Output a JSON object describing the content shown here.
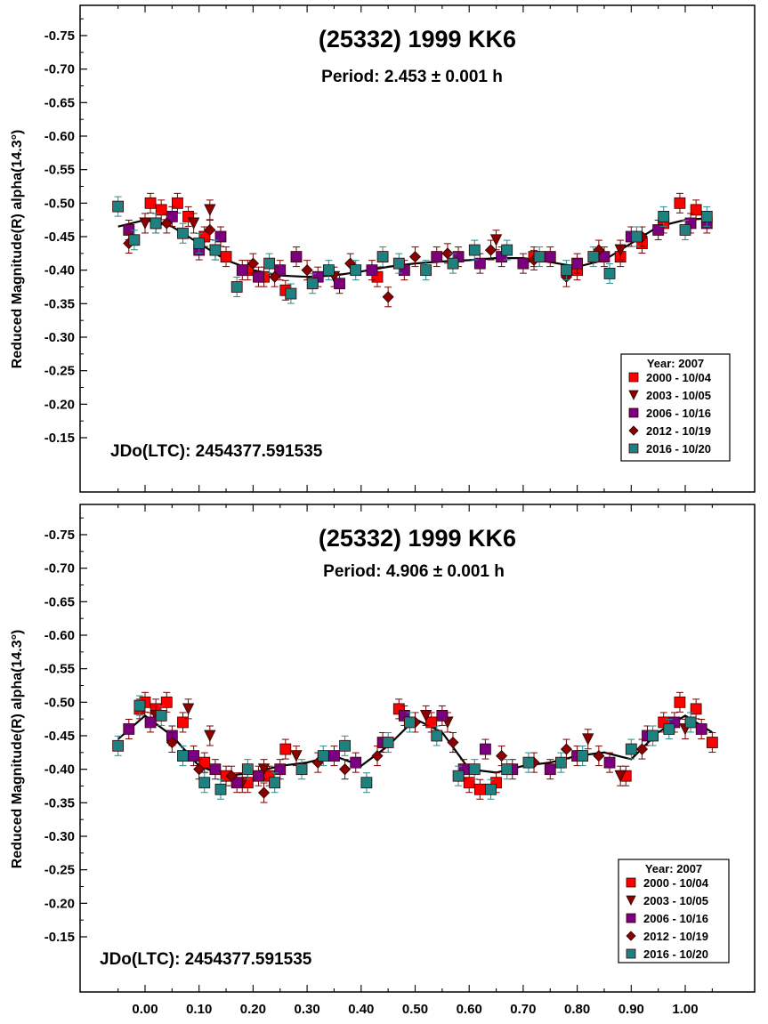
{
  "chart_data": [
    {
      "type": "scatter",
      "title": "(25332) 1999 KK6",
      "subtitle": "Period: 2.453 ± 0.001 h",
      "annotation": "JDo(LTC): 2454377.591535",
      "ylabel": "Reduced Magnitude(R) alpha(14.3°)",
      "xlabel": "",
      "y_inverted": true,
      "ylim": [
        -0.1,
        -0.8
      ],
      "xlim": [
        -0.1,
        1.1
      ],
      "y_ticks": [
        "-0.75",
        "-0.70",
        "-0.65",
        "-0.60",
        "-0.55",
        "-0.50",
        "-0.45",
        "-0.40",
        "-0.35",
        "-0.30",
        "-0.25",
        "-0.20",
        "-0.15"
      ],
      "x_ticks": [],
      "legend": {
        "title": "Year: 2007",
        "position": "bottom-right",
        "entries": [
          {
            "label": "2000 - 10/04",
            "marker": "square",
            "color": "#ff0000"
          },
          {
            "label": "2003 - 10/05",
            "marker": "triangle-down",
            "color": "#8b0000"
          },
          {
            "label": "2006 - 10/16",
            "marker": "square",
            "color": "#7a0080"
          },
          {
            "label": "2012 - 10/19",
            "marker": "diamond",
            "color": "#8b0000"
          },
          {
            "label": "2016 - 10/20",
            "marker": "square",
            "color": "#1f8080"
          }
        ]
      },
      "fit_curve": {
        "x": [
          -0.05,
          0.0,
          0.05,
          0.1,
          0.15,
          0.2,
          0.25,
          0.3,
          0.35,
          0.4,
          0.45,
          0.5,
          0.55,
          0.6,
          0.65,
          0.7,
          0.75,
          0.8,
          0.85,
          0.9,
          0.95,
          1.0,
          1.05
        ],
        "y": [
          -0.465,
          -0.475,
          -0.465,
          -0.44,
          -0.415,
          -0.4,
          -0.392,
          -0.39,
          -0.392,
          -0.398,
          -0.405,
          -0.41,
          -0.413,
          -0.415,
          -0.418,
          -0.418,
          -0.412,
          -0.405,
          -0.415,
          -0.44,
          -0.465,
          -0.475,
          -0.478
        ]
      },
      "series": [
        {
          "name": "2000 - 10/04",
          "x": [
            0.01,
            0.03,
            0.06,
            0.08,
            0.11,
            0.15,
            0.19,
            0.22,
            0.26,
            0.43,
            0.72,
            0.8,
            0.88,
            0.92,
            0.96,
            0.99,
            1.02
          ],
          "y": [
            -0.5,
            -0.49,
            -0.5,
            -0.48,
            -0.45,
            -0.42,
            -0.4,
            -0.39,
            -0.37,
            -0.39,
            -0.42,
            -0.4,
            -0.42,
            -0.44,
            -0.47,
            -0.5,
            -0.49
          ]
        },
        {
          "name": "2003 - 10/05",
          "x": [
            0.0,
            0.09,
            0.12,
            0.13,
            0.35,
            0.65,
            0.88
          ],
          "y": [
            -0.47,
            -0.47,
            -0.49,
            -0.43,
            -0.39,
            -0.445,
            -0.43
          ]
        },
        {
          "name": "2006 - 10/16",
          "x": [
            -0.03,
            0.02,
            0.05,
            0.1,
            0.14,
            0.18,
            0.21,
            0.25,
            0.28,
            0.32,
            0.36,
            0.42,
            0.48,
            0.54,
            0.58,
            0.62,
            0.66,
            0.7,
            0.75,
            0.8,
            0.85,
            0.9,
            0.95,
            1.01,
            1.04
          ],
          "y": [
            -0.46,
            -0.47,
            -0.48,
            -0.43,
            -0.45,
            -0.4,
            -0.39,
            -0.4,
            -0.42,
            -0.39,
            -0.38,
            -0.4,
            -0.4,
            -0.42,
            -0.42,
            -0.41,
            -0.42,
            -0.41,
            -0.42,
            -0.41,
            -0.42,
            -0.45,
            -0.46,
            -0.47,
            -0.47
          ]
        },
        {
          "name": "2012 - 10/19",
          "x": [
            -0.03,
            0.04,
            0.12,
            0.2,
            0.24,
            0.3,
            0.38,
            0.45,
            0.5,
            0.56,
            0.64,
            0.72,
            0.78,
            0.84,
            0.92
          ],
          "y": [
            -0.44,
            -0.47,
            -0.46,
            -0.41,
            -0.39,
            -0.4,
            -0.41,
            -0.36,
            -0.42,
            -0.425,
            -0.43,
            -0.415,
            -0.39,
            -0.43,
            -0.45
          ]
        },
        {
          "name": "2016 - 10/20",
          "x": [
            -0.05,
            -0.02,
            0.02,
            0.07,
            0.1,
            0.13,
            0.17,
            0.23,
            0.27,
            0.31,
            0.34,
            0.39,
            0.44,
            0.47,
            0.52,
            0.57,
            0.61,
            0.67,
            0.73,
            0.78,
            0.83,
            0.86,
            0.91,
            0.96,
            1.0,
            1.04
          ],
          "y": [
            -0.495,
            -0.445,
            -0.47,
            -0.455,
            -0.44,
            -0.43,
            -0.375,
            -0.41,
            -0.365,
            -0.38,
            -0.4,
            -0.4,
            -0.42,
            -0.41,
            -0.4,
            -0.41,
            -0.43,
            -0.43,
            -0.42,
            -0.4,
            -0.42,
            -0.395,
            -0.45,
            -0.48,
            -0.46,
            -0.48
          ]
        }
      ]
    },
    {
      "type": "scatter",
      "title": "(25332) 1999 KK6",
      "subtitle": "Period: 4.906 ± 0.001 h",
      "annotation": "JDo(LTC): 2454377.591535",
      "ylabel": "Reduced Magnitude(R) alpha(14.3°)",
      "xlabel": "",
      "y_inverted": true,
      "ylim": [
        -0.1,
        -0.8
      ],
      "xlim": [
        -0.1,
        1.1
      ],
      "y_ticks": [
        "-0.75",
        "-0.70",
        "-0.65",
        "-0.60",
        "-0.55",
        "-0.50",
        "-0.45",
        "-0.40",
        "-0.35",
        "-0.30",
        "-0.25",
        "-0.20",
        "-0.15"
      ],
      "x_ticks": [
        "0.00",
        "0.10",
        "0.20",
        "0.30",
        "0.40",
        "0.50",
        "0.60",
        "0.70",
        "0.80",
        "0.90",
        "1.00"
      ],
      "legend": {
        "title": "Year: 2007",
        "position": "bottom-right",
        "entries": [
          {
            "label": "2000 - 10/04",
            "marker": "square",
            "color": "#ff0000"
          },
          {
            "label": "2003 - 10/05",
            "marker": "triangle-down",
            "color": "#8b0000"
          },
          {
            "label": "2006 - 10/16",
            "marker": "square",
            "color": "#7a0080"
          },
          {
            "label": "2012 - 10/19",
            "marker": "diamond",
            "color": "#8b0000"
          },
          {
            "label": "2016 - 10/20",
            "marker": "square",
            "color": "#1f8080"
          }
        ]
      },
      "fit_curve": {
        "x": [
          -0.05,
          0.0,
          0.05,
          0.1,
          0.15,
          0.2,
          0.25,
          0.3,
          0.35,
          0.4,
          0.45,
          0.5,
          0.55,
          0.6,
          0.65,
          0.7,
          0.75,
          0.8,
          0.85,
          0.9,
          0.95,
          1.0,
          1.05
        ],
        "y": [
          -0.445,
          -0.48,
          -0.45,
          -0.405,
          -0.39,
          -0.395,
          -0.405,
          -0.41,
          -0.42,
          -0.405,
          -0.435,
          -0.475,
          -0.455,
          -0.4,
          -0.395,
          -0.405,
          -0.41,
          -0.42,
          -0.425,
          -0.415,
          -0.455,
          -0.48,
          -0.455
        ]
      },
      "series": [
        {
          "name": "2000 - 10/04",
          "x": [
            -0.01,
            0.0,
            0.02,
            0.04,
            0.07,
            0.11,
            0.15,
            0.19,
            0.23,
            0.26,
            0.47,
            0.53,
            0.6,
            0.62,
            0.65,
            0.89,
            0.96,
            0.99,
            1.02,
            1.05
          ],
          "y": [
            -0.49,
            -0.5,
            -0.49,
            -0.5,
            -0.47,
            -0.41,
            -0.39,
            -0.38,
            -0.39,
            -0.43,
            -0.49,
            -0.47,
            -0.38,
            -0.37,
            -0.38,
            -0.39,
            -0.47,
            -0.5,
            -0.49,
            -0.44
          ]
        },
        {
          "name": "2003 - 10/05",
          "x": [
            0.02,
            0.08,
            0.12,
            0.18,
            0.22,
            0.28,
            0.52,
            0.56,
            0.82,
            0.88,
            1.0
          ],
          "y": [
            -0.48,
            -0.49,
            -0.45,
            -0.38,
            -0.4,
            -0.42,
            -0.48,
            -0.47,
            -0.445,
            -0.39,
            -0.46
          ]
        },
        {
          "name": "2006 - 10/16",
          "x": [
            -0.03,
            0.01,
            0.05,
            0.09,
            0.13,
            0.17,
            0.21,
            0.25,
            0.35,
            0.39,
            0.44,
            0.48,
            0.55,
            0.59,
            0.63,
            0.68,
            0.75,
            0.8,
            0.86,
            0.93,
            0.98,
            1.03
          ],
          "y": [
            -0.46,
            -0.47,
            -0.45,
            -0.42,
            -0.4,
            -0.38,
            -0.39,
            -0.4,
            -0.42,
            -0.41,
            -0.44,
            -0.48,
            -0.48,
            -0.4,
            -0.43,
            -0.4,
            -0.4,
            -0.42,
            -0.41,
            -0.45,
            -0.47,
            -0.46
          ]
        },
        {
          "name": "2012 - 10/19",
          "x": [
            0.05,
            0.1,
            0.16,
            0.22,
            0.32,
            0.37,
            0.43,
            0.5,
            0.57,
            0.66,
            0.72,
            0.78,
            0.84,
            0.92
          ],
          "y": [
            -0.44,
            -0.4,
            -0.39,
            -0.365,
            -0.41,
            -0.4,
            -0.42,
            -0.47,
            -0.44,
            -0.42,
            -0.41,
            -0.43,
            -0.42,
            -0.43
          ]
        },
        {
          "name": "2016 - 10/20",
          "x": [
            -0.05,
            -0.01,
            0.03,
            0.07,
            0.11,
            0.14,
            0.19,
            0.24,
            0.29,
            0.33,
            0.37,
            0.41,
            0.45,
            0.49,
            0.54,
            0.58,
            0.61,
            0.64,
            0.67,
            0.71,
            0.77,
            0.81,
            0.9,
            0.94,
            0.97,
            1.01
          ],
          "y": [
            -0.435,
            -0.495,
            -0.48,
            -0.42,
            -0.38,
            -0.37,
            -0.4,
            -0.38,
            -0.4,
            -0.42,
            -0.435,
            -0.38,
            -0.44,
            -0.47,
            -0.45,
            -0.39,
            -0.4,
            -0.37,
            -0.4,
            -0.41,
            -0.41,
            -0.42,
            -0.43,
            -0.45,
            -0.46,
            -0.47
          ]
        }
      ]
    }
  ]
}
